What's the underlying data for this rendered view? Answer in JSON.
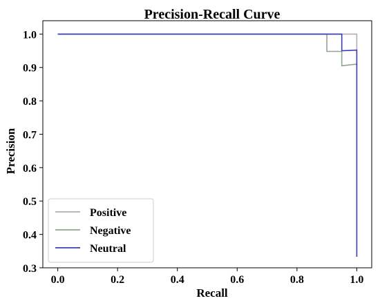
{
  "chart_data": {
    "type": "line",
    "title": "Precision-Recall Curve",
    "xlabel": "Recall",
    "ylabel": "Precision",
    "xlim": [
      -0.05,
      1.05
    ],
    "ylim": [
      0.3,
      1.04
    ],
    "xticks": [
      "0.0",
      "0.2",
      "0.4",
      "0.6",
      "0.8",
      "1.0"
    ],
    "yticks": [
      "0.3",
      "0.4",
      "0.5",
      "0.6",
      "0.7",
      "0.8",
      "0.9",
      "1.0"
    ],
    "xtick_values": [
      0.0,
      0.2,
      0.4,
      0.6,
      0.8,
      1.0
    ],
    "ytick_values": [
      0.3,
      0.4,
      0.5,
      0.6,
      0.7,
      0.8,
      0.9,
      1.0
    ],
    "legend_position": "lower-left",
    "grid": false,
    "series": [
      {
        "name": "Positive",
        "color": "#b8a9b8",
        "x": [
          0.0,
          1.0,
          1.0
        ],
        "y": [
          1.0,
          1.0,
          0.95
        ]
      },
      {
        "name": "Negative",
        "color": "#93a391",
        "x": [
          0.0,
          0.9,
          0.9,
          0.95,
          0.95,
          1.0,
          1.0
        ],
        "y": [
          1.0,
          1.0,
          0.948,
          0.948,
          0.905,
          0.91,
          0.905
        ]
      },
      {
        "name": "Neutral",
        "color": "#3b3bb8",
        "x": [
          0.0,
          0.95,
          0.95,
          1.0,
          1.0
        ],
        "y": [
          1.0,
          1.0,
          0.95,
          0.952,
          0.333
        ]
      }
    ]
  }
}
